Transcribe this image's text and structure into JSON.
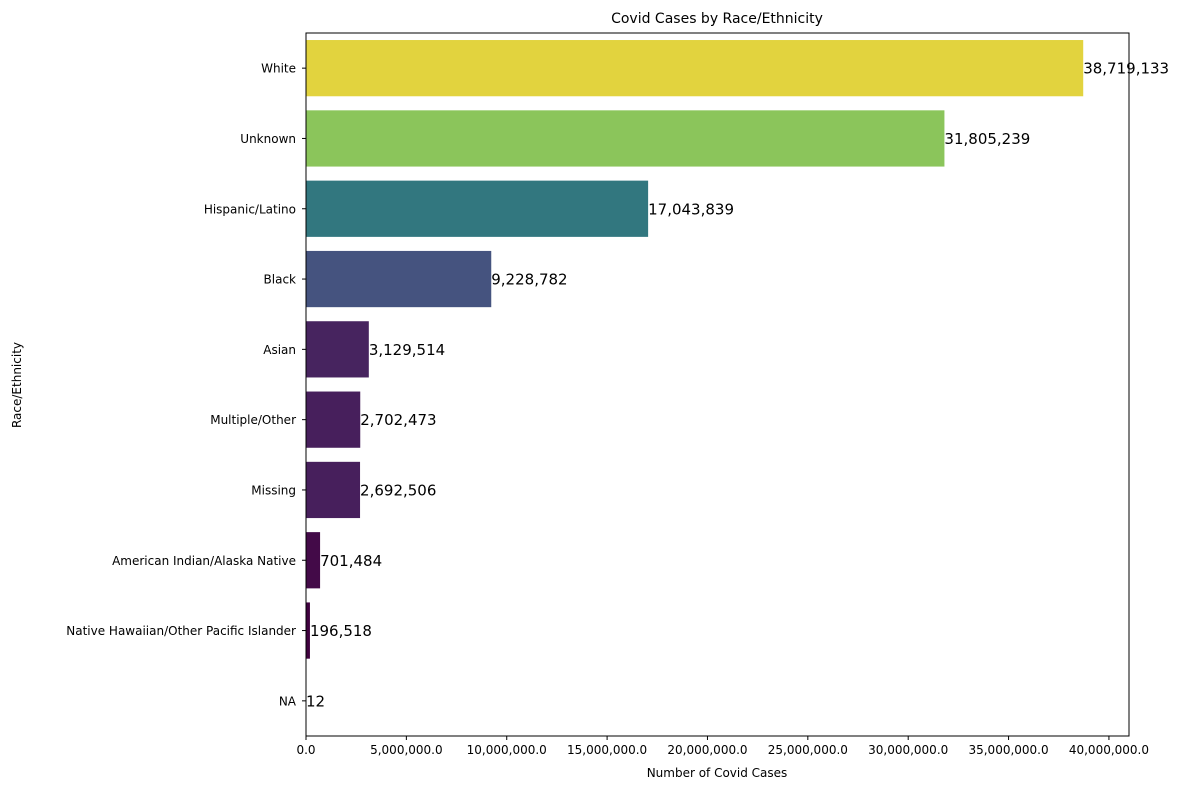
{
  "chart_data": {
    "type": "bar",
    "orientation": "horizontal",
    "title": "Covid Cases by Race/Ethnicity",
    "xlabel": "Number of Covid Cases",
    "ylabel": "Race/Ethnicity",
    "xlim": [
      0,
      41000000
    ],
    "grid": false,
    "legend": "none",
    "categories": [
      "White",
      "Unknown",
      "Hispanic/Latino",
      "Black",
      "Asian",
      "Multiple/Other",
      "Missing",
      "American Indian/Alaska Native",
      "Native Hawaiian/Other Pacific Islander",
      "NA"
    ],
    "values": [
      38719133,
      31805239,
      17043839,
      9228782,
      3129514,
      2702473,
      2692506,
      701484,
      196518,
      12
    ],
    "value_labels": [
      "38,719,133",
      "31,805,239",
      "17,043,839",
      "9,228,782",
      "3,129,514",
      "2,702,473",
      "2,692,506",
      "701,484",
      "196,518",
      "12"
    ],
    "bar_colors": [
      "#e2d33e",
      "#8bc55b",
      "#32777f",
      "#45537f",
      "#47245f",
      "#471f5c",
      "#471f5c",
      "#430a48",
      "#40013f",
      "#40013f"
    ],
    "xticks": [
      0,
      5000000,
      10000000,
      15000000,
      20000000,
      25000000,
      30000000,
      35000000,
      40000000
    ],
    "xtick_labels": [
      "0.0",
      "5,000,000.0",
      "10,000,000.0",
      "15,000,000.0",
      "20,000,000.0",
      "25,000,000.0",
      "30,000,000.0",
      "35,000,000.0",
      "40,000,000.0"
    ]
  }
}
